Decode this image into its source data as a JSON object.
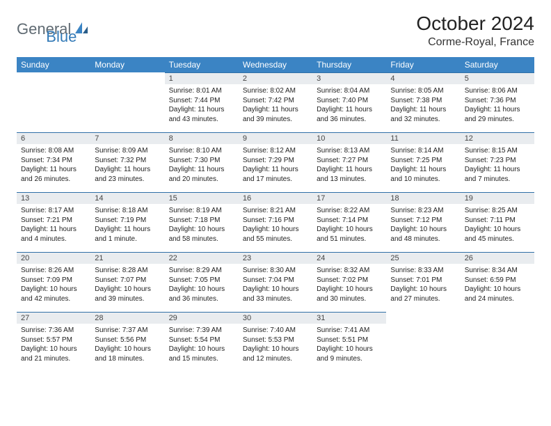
{
  "logo": {
    "part1": "General",
    "part2": "Blue"
  },
  "header": {
    "month_title": "October 2024",
    "location": "Corme-Royal, France"
  },
  "colors": {
    "header_bg": "#3b84c4",
    "header_text": "#ffffff",
    "daynum_bg": "#e9ecef",
    "day_border": "#2f6fa6",
    "logo_gray": "#5f6a72",
    "logo_blue": "#337ab7"
  },
  "weekdays": [
    "Sunday",
    "Monday",
    "Tuesday",
    "Wednesday",
    "Thursday",
    "Friday",
    "Saturday"
  ],
  "weeks": [
    [
      null,
      null,
      {
        "n": "1",
        "sunrise": "Sunrise: 8:01 AM",
        "sunset": "Sunset: 7:44 PM",
        "daylight": "Daylight: 11 hours and 43 minutes."
      },
      {
        "n": "2",
        "sunrise": "Sunrise: 8:02 AM",
        "sunset": "Sunset: 7:42 PM",
        "daylight": "Daylight: 11 hours and 39 minutes."
      },
      {
        "n": "3",
        "sunrise": "Sunrise: 8:04 AM",
        "sunset": "Sunset: 7:40 PM",
        "daylight": "Daylight: 11 hours and 36 minutes."
      },
      {
        "n": "4",
        "sunrise": "Sunrise: 8:05 AM",
        "sunset": "Sunset: 7:38 PM",
        "daylight": "Daylight: 11 hours and 32 minutes."
      },
      {
        "n": "5",
        "sunrise": "Sunrise: 8:06 AM",
        "sunset": "Sunset: 7:36 PM",
        "daylight": "Daylight: 11 hours and 29 minutes."
      }
    ],
    [
      {
        "n": "6",
        "sunrise": "Sunrise: 8:08 AM",
        "sunset": "Sunset: 7:34 PM",
        "daylight": "Daylight: 11 hours and 26 minutes."
      },
      {
        "n": "7",
        "sunrise": "Sunrise: 8:09 AM",
        "sunset": "Sunset: 7:32 PM",
        "daylight": "Daylight: 11 hours and 23 minutes."
      },
      {
        "n": "8",
        "sunrise": "Sunrise: 8:10 AM",
        "sunset": "Sunset: 7:30 PM",
        "daylight": "Daylight: 11 hours and 20 minutes."
      },
      {
        "n": "9",
        "sunrise": "Sunrise: 8:12 AM",
        "sunset": "Sunset: 7:29 PM",
        "daylight": "Daylight: 11 hours and 17 minutes."
      },
      {
        "n": "10",
        "sunrise": "Sunrise: 8:13 AM",
        "sunset": "Sunset: 7:27 PM",
        "daylight": "Daylight: 11 hours and 13 minutes."
      },
      {
        "n": "11",
        "sunrise": "Sunrise: 8:14 AM",
        "sunset": "Sunset: 7:25 PM",
        "daylight": "Daylight: 11 hours and 10 minutes."
      },
      {
        "n": "12",
        "sunrise": "Sunrise: 8:15 AM",
        "sunset": "Sunset: 7:23 PM",
        "daylight": "Daylight: 11 hours and 7 minutes."
      }
    ],
    [
      {
        "n": "13",
        "sunrise": "Sunrise: 8:17 AM",
        "sunset": "Sunset: 7:21 PM",
        "daylight": "Daylight: 11 hours and 4 minutes."
      },
      {
        "n": "14",
        "sunrise": "Sunrise: 8:18 AM",
        "sunset": "Sunset: 7:19 PM",
        "daylight": "Daylight: 11 hours and 1 minute."
      },
      {
        "n": "15",
        "sunrise": "Sunrise: 8:19 AM",
        "sunset": "Sunset: 7:18 PM",
        "daylight": "Daylight: 10 hours and 58 minutes."
      },
      {
        "n": "16",
        "sunrise": "Sunrise: 8:21 AM",
        "sunset": "Sunset: 7:16 PM",
        "daylight": "Daylight: 10 hours and 55 minutes."
      },
      {
        "n": "17",
        "sunrise": "Sunrise: 8:22 AM",
        "sunset": "Sunset: 7:14 PM",
        "daylight": "Daylight: 10 hours and 51 minutes."
      },
      {
        "n": "18",
        "sunrise": "Sunrise: 8:23 AM",
        "sunset": "Sunset: 7:12 PM",
        "daylight": "Daylight: 10 hours and 48 minutes."
      },
      {
        "n": "19",
        "sunrise": "Sunrise: 8:25 AM",
        "sunset": "Sunset: 7:11 PM",
        "daylight": "Daylight: 10 hours and 45 minutes."
      }
    ],
    [
      {
        "n": "20",
        "sunrise": "Sunrise: 8:26 AM",
        "sunset": "Sunset: 7:09 PM",
        "daylight": "Daylight: 10 hours and 42 minutes."
      },
      {
        "n": "21",
        "sunrise": "Sunrise: 8:28 AM",
        "sunset": "Sunset: 7:07 PM",
        "daylight": "Daylight: 10 hours and 39 minutes."
      },
      {
        "n": "22",
        "sunrise": "Sunrise: 8:29 AM",
        "sunset": "Sunset: 7:05 PM",
        "daylight": "Daylight: 10 hours and 36 minutes."
      },
      {
        "n": "23",
        "sunrise": "Sunrise: 8:30 AM",
        "sunset": "Sunset: 7:04 PM",
        "daylight": "Daylight: 10 hours and 33 minutes."
      },
      {
        "n": "24",
        "sunrise": "Sunrise: 8:32 AM",
        "sunset": "Sunset: 7:02 PM",
        "daylight": "Daylight: 10 hours and 30 minutes."
      },
      {
        "n": "25",
        "sunrise": "Sunrise: 8:33 AM",
        "sunset": "Sunset: 7:01 PM",
        "daylight": "Daylight: 10 hours and 27 minutes."
      },
      {
        "n": "26",
        "sunrise": "Sunrise: 8:34 AM",
        "sunset": "Sunset: 6:59 PM",
        "daylight": "Daylight: 10 hours and 24 minutes."
      }
    ],
    [
      {
        "n": "27",
        "sunrise": "Sunrise: 7:36 AM",
        "sunset": "Sunset: 5:57 PM",
        "daylight": "Daylight: 10 hours and 21 minutes."
      },
      {
        "n": "28",
        "sunrise": "Sunrise: 7:37 AM",
        "sunset": "Sunset: 5:56 PM",
        "daylight": "Daylight: 10 hours and 18 minutes."
      },
      {
        "n": "29",
        "sunrise": "Sunrise: 7:39 AM",
        "sunset": "Sunset: 5:54 PM",
        "daylight": "Daylight: 10 hours and 15 minutes."
      },
      {
        "n": "30",
        "sunrise": "Sunrise: 7:40 AM",
        "sunset": "Sunset: 5:53 PM",
        "daylight": "Daylight: 10 hours and 12 minutes."
      },
      {
        "n": "31",
        "sunrise": "Sunrise: 7:41 AM",
        "sunset": "Sunset: 5:51 PM",
        "daylight": "Daylight: 10 hours and 9 minutes."
      },
      null,
      null
    ]
  ]
}
